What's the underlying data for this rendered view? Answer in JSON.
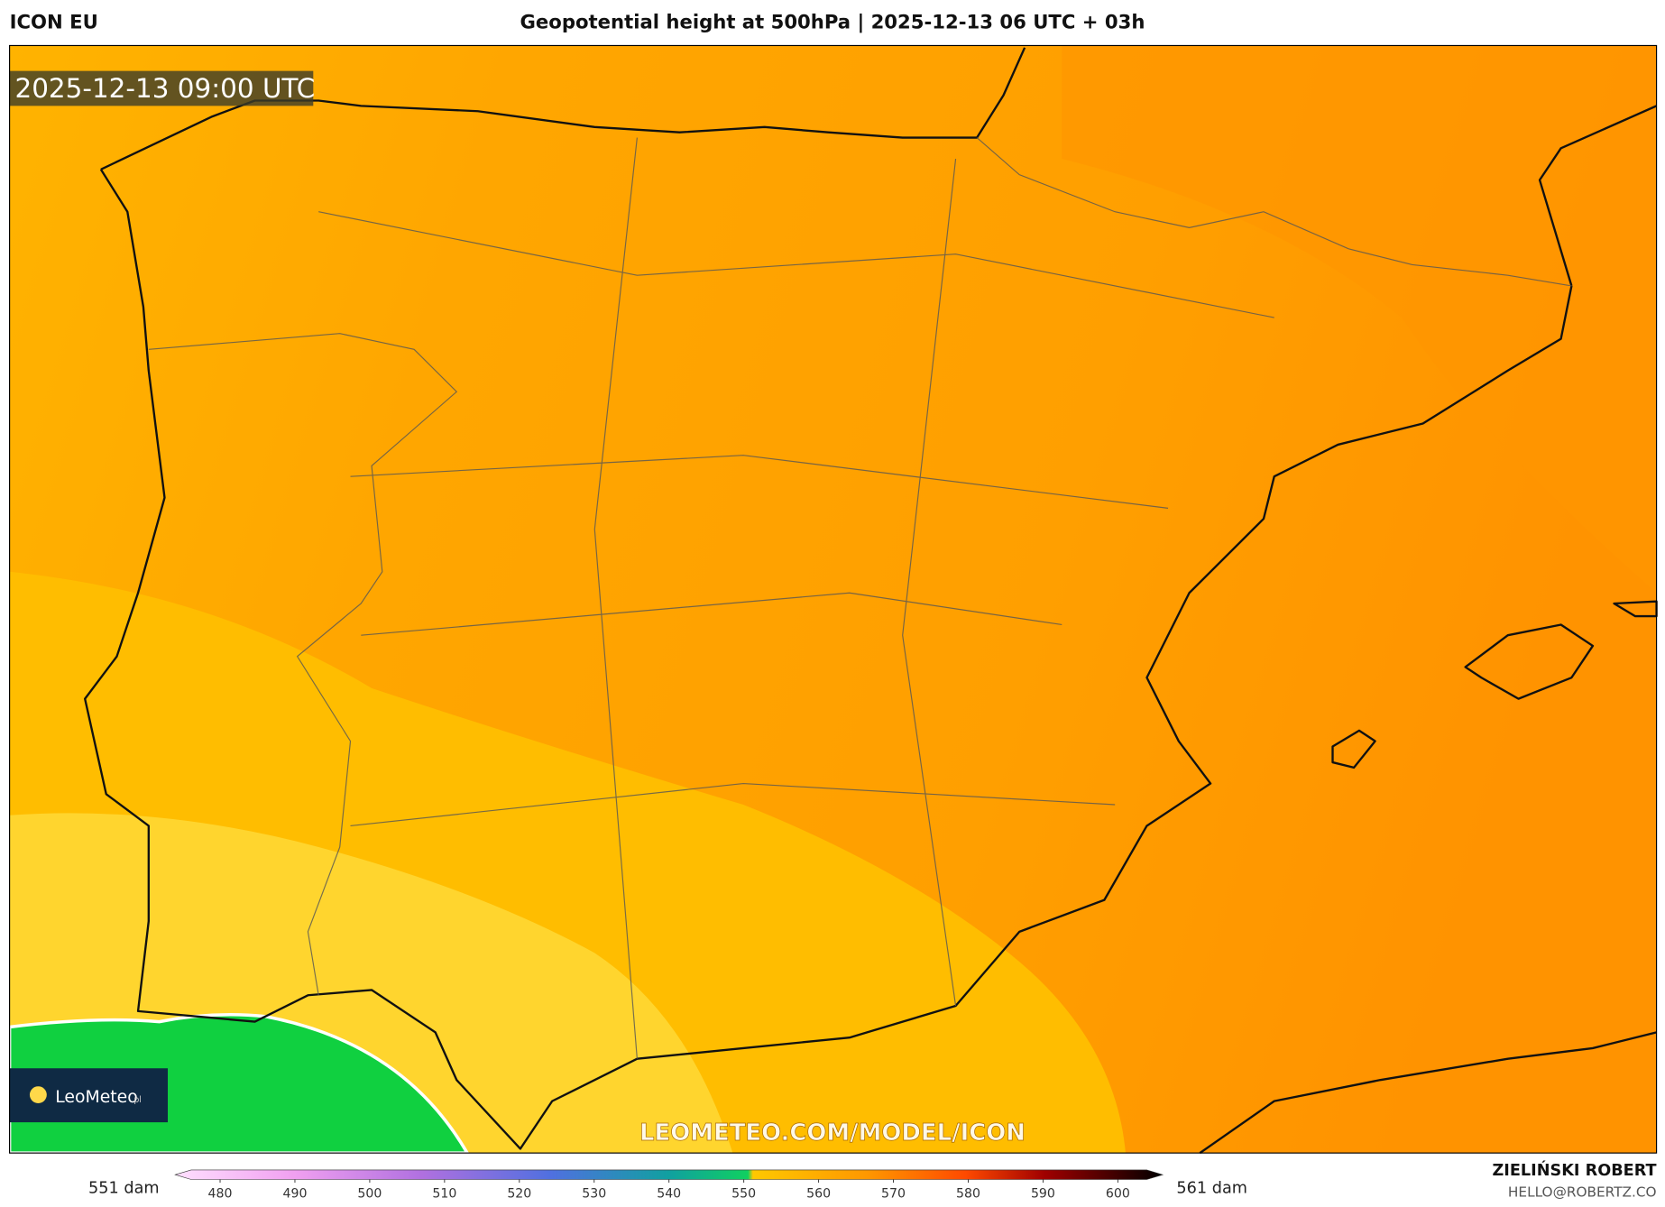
{
  "header": {
    "model": "ICON EU",
    "title": "Geopotential height at 500hPa | 2025-12-13 06 UTC + 03h",
    "valid_time": "2025-12-13 09:00 UTC"
  },
  "watermark": "LEOMETEO.COM/MODEL/ICON",
  "logo": {
    "name": "LeoMeteo",
    "suffix": "pl"
  },
  "legend": {
    "min_label": "551 dam",
    "max_label": "561 dam",
    "range": [
      474,
      606
    ],
    "ticks": [
      480,
      490,
      500,
      510,
      520,
      530,
      540,
      550,
      560,
      570,
      580,
      590,
      600
    ]
  },
  "credits": {
    "author": "ZIELIŃSKI ROBERT",
    "email": "HELLO@ROBERTZ.CO"
  }
}
